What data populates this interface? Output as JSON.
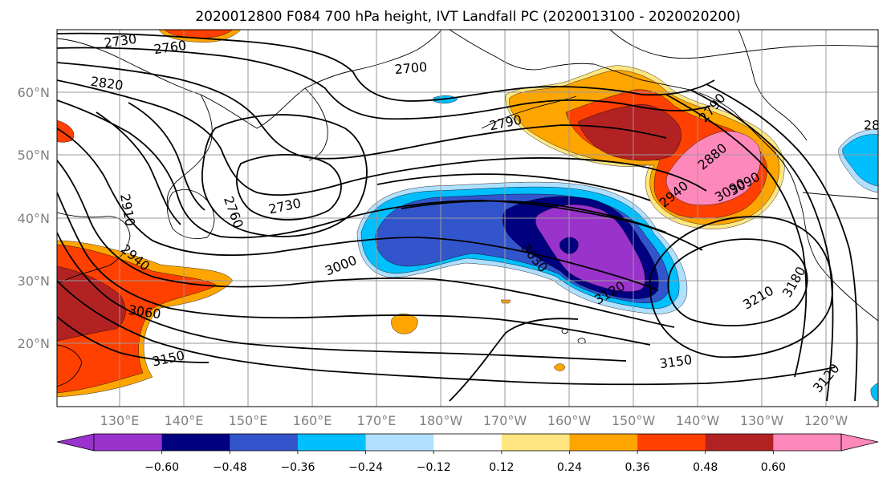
{
  "figure": {
    "title": "2020012800 F084 700 hPa height, IVT Landfall PC (2020013100 - 2020020200)"
  },
  "map": {
    "lat_labels": [
      "60°N",
      "50°N",
      "40°N",
      "30°N",
      "20°N"
    ],
    "lon_labels": [
      "130°E",
      "140°E",
      "150°E",
      "160°E",
      "170°E",
      "180°W",
      "170°W",
      "160°W",
      "150°W",
      "140°W",
      "130°W",
      "120°W"
    ]
  },
  "contours": {
    "field": "700 hPa height",
    "labels": [
      "2730",
      "2760",
      "2700",
      "2820",
      "2790",
      "2760",
      "2730",
      "2910",
      "2940",
      "2880",
      "3090",
      "3000",
      "3030",
      "3060",
      "3120",
      "3150",
      "3150",
      "3210",
      "3180",
      "3120",
      "2940",
      "2790",
      "3090",
      "28"
    ]
  },
  "colorbar": {
    "ticks": [
      "−0.60",
      "−0.48",
      "−0.36",
      "−0.24",
      "−0.12",
      "0.12",
      "0.24",
      "0.36",
      "0.48",
      "0.60"
    ],
    "colors": [
      "#9933cc",
      "#000080",
      "#3355cc",
      "#00bfff",
      "#b0e0ff",
      "#ffffff",
      "#ffe680",
      "#ffa500",
      "#ff4000",
      "#b22222",
      "#ff88bb"
    ]
  },
  "fill_colors": {
    "purple": "#9933cc",
    "navy": "#000080",
    "blue": "#3355cc",
    "sky": "#00bfff",
    "light_blue": "#b0e0ff",
    "yellow": "#ffe680",
    "orange": "#ffa500",
    "red_orange": "#ff4000",
    "dark_red": "#b22222",
    "pink": "#ff88bb"
  }
}
